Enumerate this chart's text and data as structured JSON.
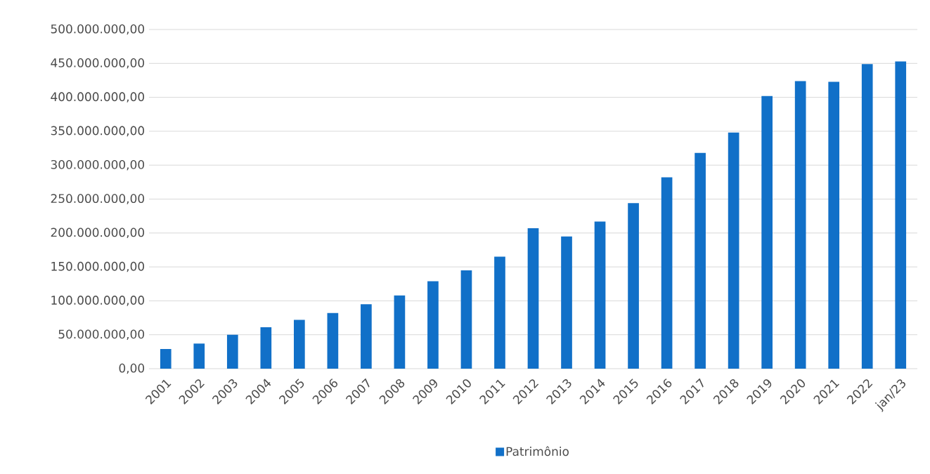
{
  "chart_data": {
    "type": "bar",
    "categories": [
      "2001",
      "2002",
      "2003",
      "2004",
      "2005",
      "2006",
      "2007",
      "2008",
      "2009",
      "2010",
      "2011",
      "2012",
      "2013",
      "2014",
      "2015",
      "2016",
      "2017",
      "2018",
      "2019",
      "2020",
      "2021",
      "2022",
      "jan/23"
    ],
    "series": [
      {
        "name": "Patrimônio",
        "color": "#1170c8",
        "values": [
          29000000,
          37000000,
          50000000,
          61000000,
          72000000,
          82000000,
          95000000,
          108000000,
          129000000,
          145000000,
          165000000,
          207000000,
          195000000,
          217000000,
          244000000,
          282000000,
          318000000,
          348000000,
          402000000,
          424000000,
          423000000,
          449000000,
          453000000
        ]
      }
    ],
    "ylim": [
      0,
      500000000
    ],
    "yticks": [
      {
        "value": 0,
        "label": "0,00"
      },
      {
        "value": 50000000,
        "label": "50.000.000,00"
      },
      {
        "value": 100000000,
        "label": "100.000.000,00"
      },
      {
        "value": 150000000,
        "label": "150.000.000,00"
      },
      {
        "value": 200000000,
        "label": "200.000.000,00"
      },
      {
        "value": 250000000,
        "label": "250.000.000,00"
      },
      {
        "value": 300000000,
        "label": "300.000.000,00"
      },
      {
        "value": 350000000,
        "label": "350.000.000,00"
      },
      {
        "value": 400000000,
        "label": "400.000.000,00"
      },
      {
        "value": 450000000,
        "label": "450.000.000,00"
      },
      {
        "value": 500000000,
        "label": "500.000.000,00"
      }
    ],
    "grid": "y",
    "legend": "bottom"
  }
}
